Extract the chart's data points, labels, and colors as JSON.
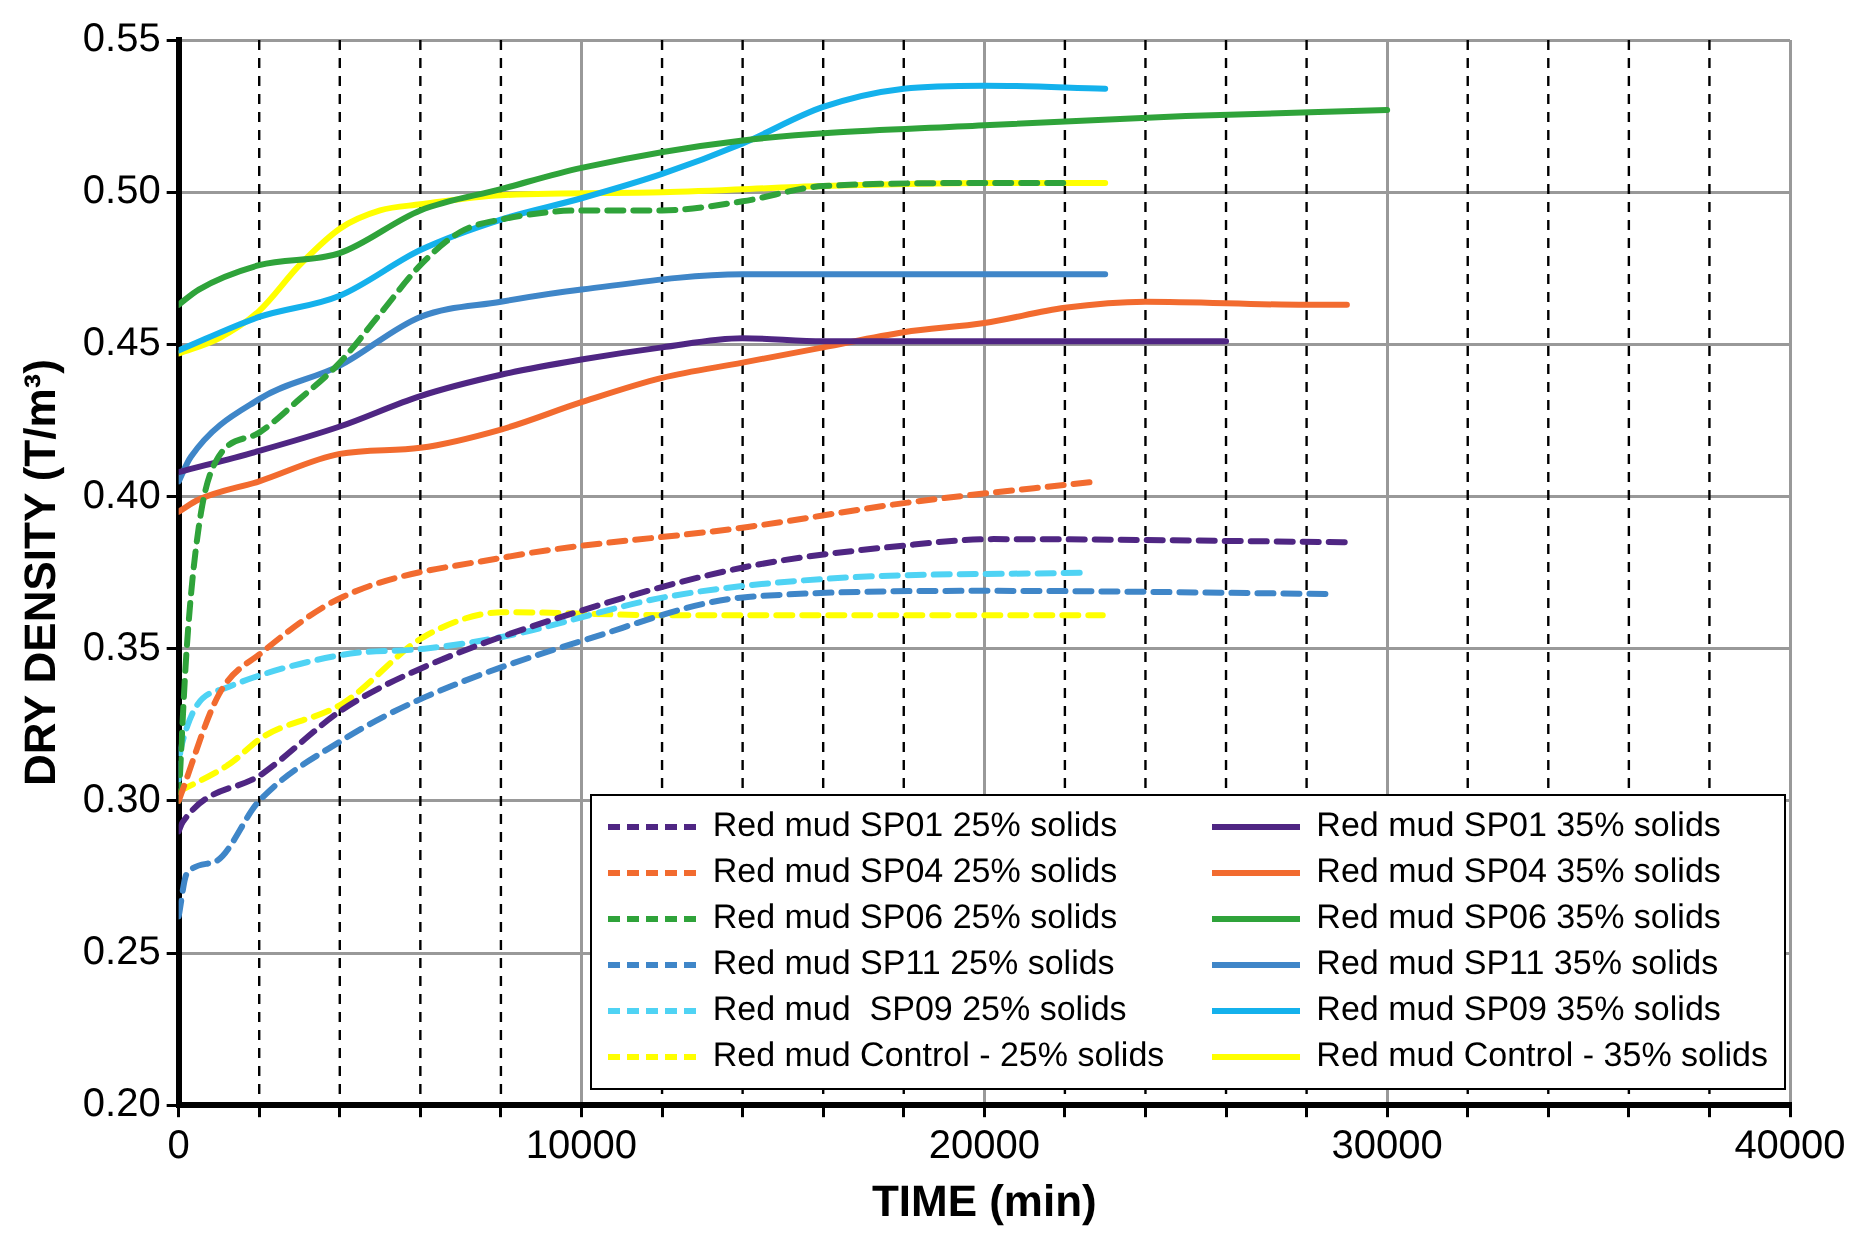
{
  "chart_data": {
    "type": "line",
    "xlabel": "TIME (min)",
    "ylabel": "DRY DENSITY (T/m³)",
    "xlim": [
      0,
      40000
    ],
    "ylim": [
      0.2,
      0.55
    ],
    "xticks": [
      0,
      {
        "value": 2000,
        "label": null
      },
      {
        "value": 4000,
        "label": null
      },
      {
        "value": 6000,
        "label": null
      },
      {
        "value": 8000,
        "label": null
      },
      10000,
      {
        "value": 12000,
        "label": null
      },
      {
        "value": 14000,
        "label": null
      },
      {
        "value": 16000,
        "label": null
      },
      {
        "value": 18000,
        "label": null
      },
      20000,
      {
        "value": 22000,
        "label": null
      },
      {
        "value": 24000,
        "label": null
      },
      {
        "value": 26000,
        "label": null
      },
      {
        "value": 28000,
        "label": null
      },
      30000,
      {
        "value": 32000,
        "label": null
      },
      {
        "value": 34000,
        "label": null
      },
      {
        "value": 36000,
        "label": null
      },
      {
        "value": 38000,
        "label": null
      },
      40000
    ],
    "yticks": [
      {
        "value": 0.2,
        "label": "0.20"
      },
      0.25,
      {
        "value": 0.3,
        "label": "0.30"
      },
      0.35,
      {
        "value": 0.4,
        "label": "0.40"
      },
      0.45,
      {
        "value": 0.5,
        "label": "0.50"
      },
      0.55
    ],
    "grid": true,
    "legend": "bottom right",
    "marker": "none",
    "series": [
      {
        "name": "Red mud SP01 25% solids",
        "color": "#4f2683",
        "line_style": "dashed",
        "x": [
          0,
          100,
          2090,
          4070,
          6100,
          10120,
          14130,
          18100,
          20230,
          29000
        ],
        "values": [
          0.29,
          0.293,
          0.309,
          0.33,
          0.344,
          0.363,
          0.377,
          0.384,
          0.386,
          0.385
        ]
      },
      {
        "name": "Red mud SP04 25% solids",
        "color": "#f26b2f",
        "line_style": "dashed",
        "x": [
          0,
          1000,
          2090,
          4070,
          8080,
          14130,
          18100,
          22840
        ],
        "values": [
          0.3,
          0.335,
          0.349,
          0.367,
          0.38,
          0.39,
          0.398,
          0.405
        ]
      },
      {
        "name": "Red mud SP06 25% solids",
        "color": "#2fa33a",
        "line_style": "dashed",
        "x": [
          0,
          200,
          500,
          900,
          2000,
          3000,
          4000,
          5000,
          6000,
          7000,
          8000,
          10000,
          12000,
          14000,
          16000,
          20000,
          22000
        ],
        "values": [
          0.3,
          0.35,
          0.39,
          0.411,
          0.421,
          0.432,
          0.444,
          0.46,
          0.476,
          0.487,
          0.491,
          0.494,
          0.494,
          0.497,
          0.502,
          0.503,
          0.503
        ]
      },
      {
        "name": "Red mud SP11 25% solids",
        "color": "#3f86c8",
        "line_style": "dashed",
        "x": [
          0,
          200,
          900,
          2000,
          4070,
          6100,
          10120,
          14130,
          20230,
          28470
        ],
        "values": [
          0.262,
          0.276,
          0.28,
          0.3,
          0.32,
          0.334,
          0.353,
          0.367,
          0.369,
          0.368
        ]
      },
      {
        "name": "Red mud  SP09 25% solids",
        "color": "#4fd3f4",
        "line_style": "dashed",
        "x": [
          0,
          50,
          1150,
          4070,
          6100,
          8080,
          12100,
          16110,
          22530
        ],
        "values": [
          0.307,
          0.317,
          0.337,
          0.348,
          0.35,
          0.354,
          0.367,
          0.373,
          0.375
        ]
      },
      {
        "name": "Red mud Control - 25% solids",
        "color": "#ffff00",
        "line_style": "dashed",
        "x": [
          0,
          1250,
          2090,
          4070,
          6100,
          8080,
          12100,
          22940
        ],
        "values": [
          0.303,
          0.312,
          0.321,
          0.332,
          0.354,
          0.362,
          0.361,
          0.361
        ]
      },
      {
        "name": "Red mud SP01 35% solids",
        "color": "#4f2683",
        "line_style": "solid",
        "x": [
          0,
          2000,
          4000,
          6000,
          8000,
          10000,
          12000,
          14000,
          16000,
          26000
        ],
        "values": [
          0.408,
          0.415,
          0.423,
          0.433,
          0.44,
          0.445,
          0.449,
          0.452,
          0.451,
          0.451
        ]
      },
      {
        "name": "Red mud SP04 35% solids",
        "color": "#f26b2f",
        "line_style": "solid",
        "x": [
          0,
          500,
          2000,
          4000,
          6000,
          8000,
          10000,
          12000,
          14000,
          16000,
          18000,
          20000,
          22000,
          24000,
          28000,
          29000
        ],
        "values": [
          0.395,
          0.399,
          0.405,
          0.414,
          0.416,
          0.422,
          0.431,
          0.439,
          0.444,
          0.449,
          0.454,
          0.457,
          0.462,
          0.464,
          0.463,
          0.463
        ]
      },
      {
        "name": "Red mud SP06 35% solids",
        "color": "#2fa33a",
        "line_style": "solid",
        "x": [
          0,
          500,
          2000,
          4000,
          6000,
          8000,
          10000,
          14000,
          20000,
          25000,
          30000
        ],
        "values": [
          0.463,
          0.468,
          0.476,
          0.48,
          0.494,
          0.501,
          0.508,
          0.517,
          0.522,
          0.525,
          0.527
        ]
      },
      {
        "name": "Red mud SP11 35% solids",
        "color": "#3f86c8",
        "line_style": "solid",
        "x": [
          0,
          300,
          2000,
          4000,
          6000,
          8000,
          10000,
          14000,
          18000,
          23000
        ],
        "values": [
          0.405,
          0.413,
          0.432,
          0.443,
          0.459,
          0.464,
          0.468,
          0.473,
          0.473,
          0.473
        ]
      },
      {
        "name": "Red mud SP09 35% solids",
        "color": "#14b1ec",
        "line_style": "solid",
        "x": [
          0,
          2000,
          4000,
          6000,
          8000,
          10000,
          12000,
          14000,
          16000,
          18000,
          20000,
          23000
        ],
        "values": [
          0.448,
          0.459,
          0.466,
          0.481,
          0.491,
          0.498,
          0.506,
          0.516,
          0.528,
          0.534,
          0.535,
          0.534
        ]
      },
      {
        "name": "Red mud Control - 35% solids",
        "color": "#ffff00",
        "line_style": "solid",
        "x": [
          0,
          1000,
          2000,
          3000,
          4000,
          5000,
          6000,
          8000,
          12000,
          16000,
          20000,
          23000
        ],
        "values": [
          0.447,
          0.452,
          0.461,
          0.476,
          0.488,
          0.494,
          0.496,
          0.499,
          0.5,
          0.502,
          0.503,
          0.503
        ]
      }
    ]
  }
}
